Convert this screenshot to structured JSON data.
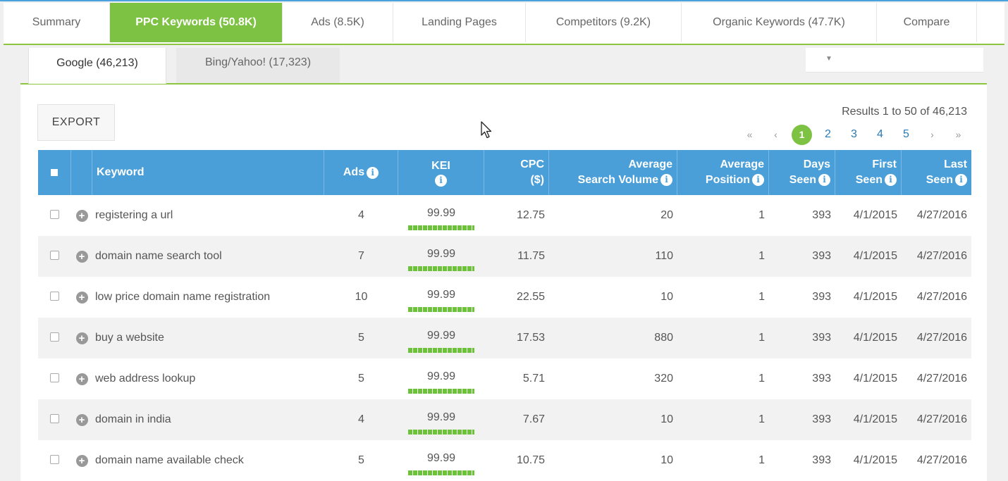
{
  "main_tabs": [
    "Summary",
    "PPC Keywords (50.8K)",
    "Ads (8.5K)",
    "Landing Pages",
    "Competitors (9.2K)",
    "Organic Keywords (47.7K)",
    "Compare"
  ],
  "sub_tabs": {
    "google": "Google (46,213)",
    "bing": "Bing/Yahoo! (17,323)"
  },
  "toolbar": {
    "export_label": "EXPORT",
    "results_text": "Results 1 to 50 of 46,213"
  },
  "pagination": {
    "first": "«",
    "prev": "‹",
    "current": "1",
    "pages": [
      "2",
      "3",
      "4",
      "5"
    ],
    "next": "›",
    "last": "»"
  },
  "columns": {
    "keyword": "Keyword",
    "ads": "Ads",
    "kei": "KEI",
    "cpc": [
      "CPC",
      "($)"
    ],
    "avg_search_volume": [
      "Average",
      "Search Volume"
    ],
    "avg_position": [
      "Average",
      "Position"
    ],
    "days_seen": [
      "Days",
      "Seen"
    ],
    "first_seen": [
      "First",
      "Seen"
    ],
    "last_seen": [
      "Last",
      "Seen"
    ]
  },
  "rows": [
    {
      "keyword": "registering a url",
      "ads": "4",
      "kei": "99.99",
      "cpc": "12.75",
      "volume": "20",
      "position": "1",
      "days": "393",
      "first": "4/1/2015",
      "last": "4/27/2016"
    },
    {
      "keyword": "domain name search tool",
      "ads": "7",
      "kei": "99.99",
      "cpc": "11.75",
      "volume": "110",
      "position": "1",
      "days": "393",
      "first": "4/1/2015",
      "last": "4/27/2016"
    },
    {
      "keyword": "low price domain name registration",
      "ads": "10",
      "kei": "99.99",
      "cpc": "22.55",
      "volume": "10",
      "position": "1",
      "days": "393",
      "first": "4/1/2015",
      "last": "4/27/2016"
    },
    {
      "keyword": "buy a website",
      "ads": "5",
      "kei": "99.99",
      "cpc": "17.53",
      "volume": "880",
      "position": "1",
      "days": "393",
      "first": "4/1/2015",
      "last": "4/27/2016"
    },
    {
      "keyword": "web address lookup",
      "ads": "5",
      "kei": "99.99",
      "cpc": "5.71",
      "volume": "320",
      "position": "1",
      "days": "393",
      "first": "4/1/2015",
      "last": "4/27/2016"
    },
    {
      "keyword": "domain in india",
      "ads": "4",
      "kei": "99.99",
      "cpc": "7.67",
      "volume": "10",
      "position": "1",
      "days": "393",
      "first": "4/1/2015",
      "last": "4/27/2016"
    },
    {
      "keyword": "domain name available check",
      "ads": "5",
      "kei": "99.99",
      "cpc": "10.75",
      "volume": "10",
      "position": "1",
      "days": "393",
      "first": "4/1/2015",
      "last": "4/27/2016"
    }
  ],
  "icons": {
    "info": "info-icon",
    "expand": "plus-circle-icon",
    "pointer": "mouse-cursor-icon"
  },
  "colors": {
    "accent_green": "#7dc242",
    "header_blue": "#4a9fd8",
    "link_blue": "#2a7ab5"
  }
}
